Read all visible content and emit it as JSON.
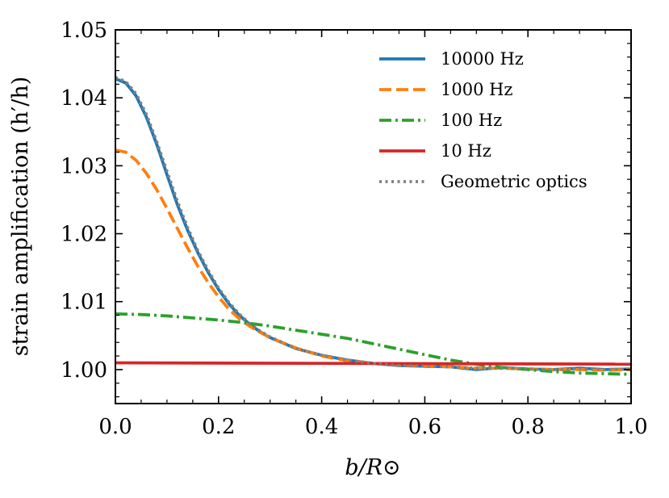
{
  "chart_data": {
    "type": "line",
    "title": "",
    "xlabel": "b/R⊙",
    "ylabel": "strain amplification (h′/h)",
    "xlim": [
      0.0,
      1.0
    ],
    "ylim": [
      0.995,
      1.05
    ],
    "xticks": [
      0.0,
      0.2,
      0.4,
      0.6,
      0.8,
      1.0
    ],
    "xtick_labels": [
      "0.0",
      "0.2",
      "0.4",
      "0.6",
      "0.8",
      "1.0"
    ],
    "yticks": [
      1.0,
      1.01,
      1.02,
      1.03,
      1.04,
      1.05
    ],
    "ytick_labels": [
      "1.00",
      "1.01",
      "1.02",
      "1.03",
      "1.04",
      "1.05"
    ],
    "grid": false,
    "legend_position": "top-right",
    "series": [
      {
        "name": "10000 Hz",
        "color": "#1f77b4",
        "style": "solid",
        "x": [
          0,
          0.02,
          0.04,
          0.06,
          0.08,
          0.1,
          0.12,
          0.14,
          0.16,
          0.18,
          0.2,
          0.22,
          0.24,
          0.26,
          0.28,
          0.3,
          0.35,
          0.4,
          0.45,
          0.5,
          0.55,
          0.6,
          0.65,
          0.7,
          0.75,
          0.8,
          0.85,
          0.9,
          0.95,
          1.0
        ],
        "y": [
          1.0428,
          1.0422,
          1.0403,
          1.0372,
          1.0332,
          1.0287,
          1.0243,
          1.0205,
          1.0172,
          1.0143,
          1.0118,
          1.0097,
          1.008,
          1.0067,
          1.0056,
          1.0047,
          1.0031,
          1.0021,
          1.0014,
          1.0009,
          1.0006,
          1.0005,
          1.0004,
          1.0,
          1.0003,
          1.0001,
          1.0,
          1.0002,
          1.0,
          1.0001
        ]
      },
      {
        "name": "1000 Hz",
        "color": "#ff7f0e",
        "style": "dashed",
        "x": [
          0,
          0.02,
          0.04,
          0.06,
          0.08,
          0.1,
          0.12,
          0.14,
          0.16,
          0.18,
          0.2,
          0.22,
          0.24,
          0.26,
          0.28,
          0.3,
          0.35,
          0.4,
          0.45,
          0.5,
          0.55,
          0.6,
          0.65,
          0.7,
          0.75,
          0.8,
          0.85,
          0.9,
          0.95,
          1.0
        ],
        "y": [
          1.0323,
          1.032,
          1.0308,
          1.0289,
          1.0265,
          1.0237,
          1.0208,
          1.0179,
          1.0152,
          1.0128,
          1.0107,
          1.0089,
          1.0075,
          1.0064,
          1.0055,
          1.0047,
          1.0032,
          1.002,
          1.0013,
          1.0009,
          1.0007,
          1.0006,
          1.0004,
          1.0002,
          1.0002,
          1.0001,
          1.0,
          1.0,
          0.9999,
          1.0
        ]
      },
      {
        "name": "100 Hz",
        "color": "#2ca02c",
        "style": "dashdot",
        "x": [
          0,
          0.05,
          0.1,
          0.15,
          0.2,
          0.25,
          0.3,
          0.35,
          0.4,
          0.45,
          0.5,
          0.55,
          0.6,
          0.65,
          0.7,
          0.75,
          0.8,
          0.85,
          0.9,
          0.95,
          1.0
        ],
        "y": [
          1.0082,
          1.0081,
          1.0079,
          1.0076,
          1.0073,
          1.0069,
          1.0064,
          1.0058,
          1.0052,
          1.0046,
          1.0038,
          1.003,
          1.0022,
          1.0014,
          1.0008,
          1.0003,
          1.0,
          0.9997,
          0.9995,
          0.9994,
          0.9993
        ]
      },
      {
        "name": "10 Hz",
        "color": "#d62728",
        "style": "solid",
        "x": [
          0,
          1.0
        ],
        "y": [
          1.001,
          1.0008
        ]
      },
      {
        "name": "Geometric optics",
        "color": "#808080",
        "style": "dotted",
        "x": [
          0,
          0.02,
          0.04,
          0.06,
          0.08,
          0.1,
          0.12,
          0.14,
          0.16,
          0.18,
          0.2,
          0.22,
          0.24,
          0.26,
          0.28,
          0.3,
          0.35,
          0.4,
          0.45,
          0.5,
          0.55,
          0.6,
          0.65,
          0.7,
          0.75,
          0.8,
          0.85,
          0.9,
          0.95,
          1.0
        ],
        "y": [
          1.043,
          1.0424,
          1.0406,
          1.0376,
          1.0336,
          1.0292,
          1.0248,
          1.0209,
          1.0175,
          1.0146,
          1.012,
          1.0099,
          1.0082,
          1.0068,
          1.0057,
          1.0048,
          1.0031,
          1.0021,
          1.0014,
          1.0009,
          1.0006,
          1.0005,
          1.0004,
          1.0002,
          1.0002,
          1.0001,
          1.0,
          1.0001,
          1.0,
          1.0001
        ]
      }
    ]
  }
}
